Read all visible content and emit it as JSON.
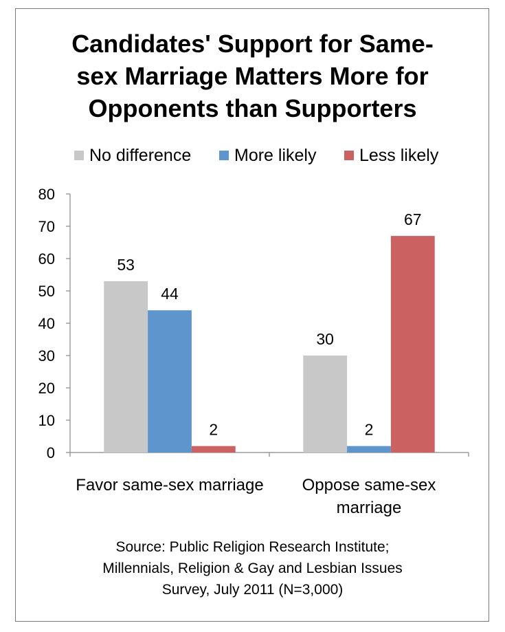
{
  "chart_data": {
    "type": "bar",
    "title_lines": [
      "Candidates' Support for Same-",
      "sex Marriage Matters More for",
      "Opponents than Supporters"
    ],
    "categories": [
      {
        "lines": [
          "Favor same-sex marriage"
        ]
      },
      {
        "lines": [
          "Oppose same-sex",
          "marriage"
        ]
      }
    ],
    "series": [
      {
        "name": "No difference",
        "color": "#C8C8C8",
        "values": [
          53,
          30
        ]
      },
      {
        "name": "More likely",
        "color": "#5E95CC",
        "values": [
          44,
          2
        ]
      },
      {
        "name": "Less likely",
        "color": "#CC6161",
        "values": [
          2,
          67
        ]
      }
    ],
    "ylim": [
      0,
      80
    ],
    "yticks": [
      "0",
      "10",
      "20",
      "30",
      "40",
      "50",
      "60",
      "70",
      "80"
    ],
    "data_labels": true,
    "grid": false,
    "legend_position": "top",
    "source_lines": [
      "Source: Public Religion Research Institute;",
      "Millennials, Religion & Gay and Lesbian Issues",
      "Survey, July 2011 (N=3,000)"
    ]
  }
}
